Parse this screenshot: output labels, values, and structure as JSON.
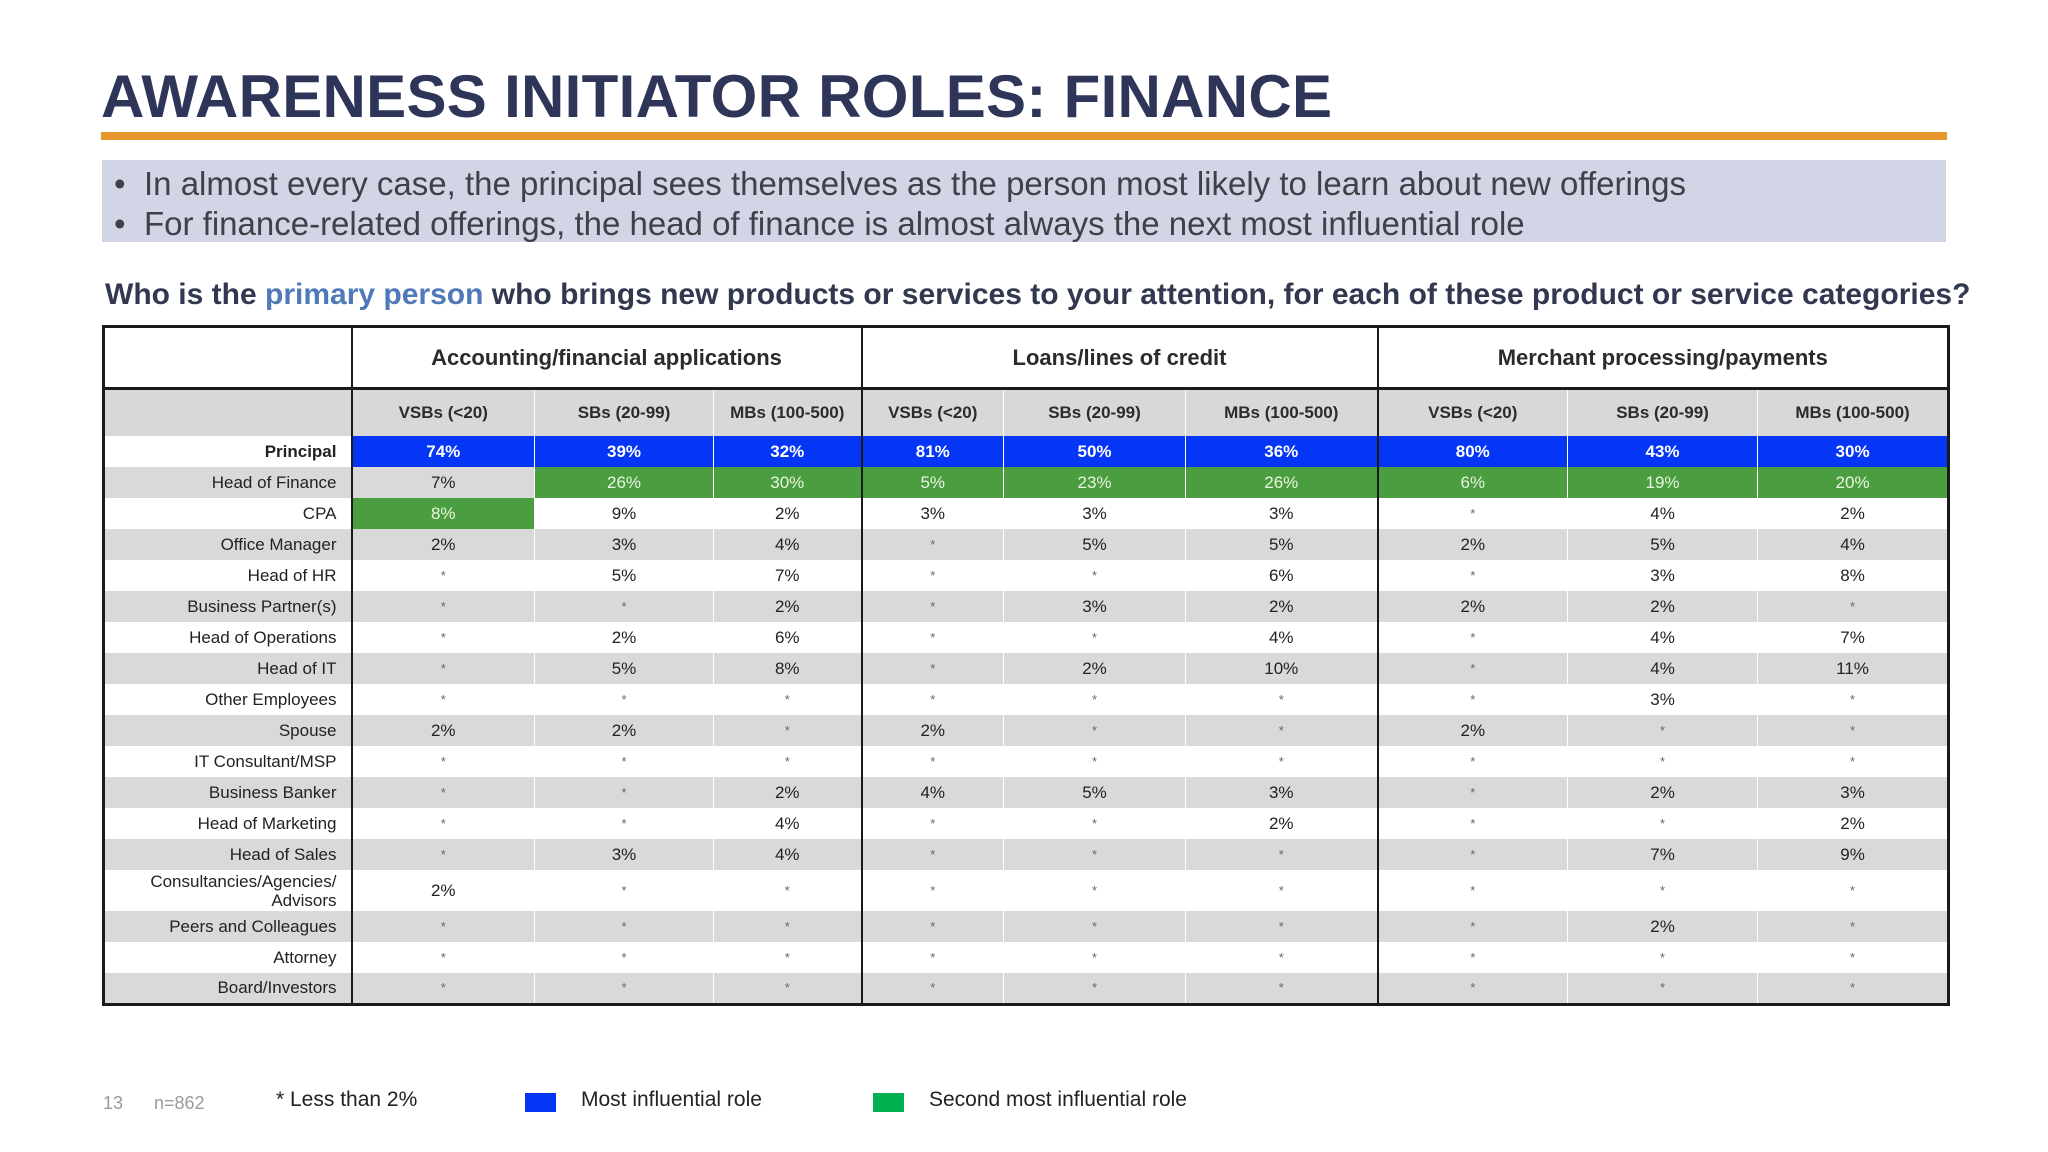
{
  "slide": {
    "title": "AWARENESS INITIATOR ROLES: FINANCE",
    "bullets": [
      "In almost every case, the principal sees themselves as the person most likely to learn about new offerings",
      "For finance-related offerings, the head of finance is almost always the next most influential role"
    ],
    "question_before": "Who is the ",
    "question_highlight": "primary person",
    "question_after": " who brings new products or services to your attention, for each of these product or service categories?"
  },
  "table": {
    "categories": [
      "Accounting/financial applications",
      "Loans/lines of credit",
      "Merchant processing/payments"
    ],
    "segments": [
      "VSBs (<20)",
      "SBs (20-99)",
      "MBs (100-500)",
      "VSBs (<20)",
      "SBs (20-99)",
      "MBs (100-500)",
      "VSBs (<20)",
      "SBs (20-99)",
      "MBs (100-500)"
    ],
    "rows": [
      {
        "label": "Principal",
        "values": [
          "74%",
          "39%",
          "32%",
          "81%",
          "50%",
          "36%",
          "80%",
          "43%",
          "30%"
        ],
        "highlight": [
          "blue",
          "blue",
          "blue",
          "blue",
          "blue",
          "blue",
          "blue",
          "blue",
          "blue"
        ]
      },
      {
        "label": "Head of Finance",
        "values": [
          "7%",
          "26%",
          "30%",
          "5%",
          "23%",
          "26%",
          "6%",
          "19%",
          "20%"
        ],
        "highlight": [
          "",
          "green",
          "green",
          "green",
          "green",
          "green",
          "green",
          "green",
          "green"
        ]
      },
      {
        "label": "CPA",
        "values": [
          "8%",
          "9%",
          "2%",
          "3%",
          "3%",
          "3%",
          "*",
          "4%",
          "2%"
        ],
        "highlight": [
          "green",
          "",
          "",
          "",
          "",
          "",
          "",
          "",
          ""
        ]
      },
      {
        "label": "Office Manager",
        "values": [
          "2%",
          "3%",
          "4%",
          "*",
          "5%",
          "5%",
          "2%",
          "5%",
          "4%"
        ]
      },
      {
        "label": "Head of HR",
        "values": [
          "*",
          "5%",
          "7%",
          "*",
          "*",
          "6%",
          "*",
          "3%",
          "8%"
        ]
      },
      {
        "label": "Business Partner(s)",
        "values": [
          "*",
          "*",
          "2%",
          "*",
          "3%",
          "2%",
          "2%",
          "2%",
          "*"
        ]
      },
      {
        "label": "Head of Operations",
        "values": [
          "*",
          "2%",
          "6%",
          "*",
          "*",
          "4%",
          "*",
          "4%",
          "7%"
        ]
      },
      {
        "label": "Head of IT",
        "values": [
          "*",
          "5%",
          "8%",
          "*",
          "2%",
          "10%",
          "*",
          "4%",
          "11%"
        ]
      },
      {
        "label": "Other Employees",
        "values": [
          "*",
          "*",
          "*",
          "*",
          "*",
          "*",
          "*",
          "3%",
          "*"
        ]
      },
      {
        "label": "Spouse",
        "values": [
          "2%",
          "2%",
          "*",
          "2%",
          "*",
          "*",
          "2%",
          "*",
          "*"
        ]
      },
      {
        "label": "IT Consultant/MSP",
        "values": [
          "*",
          "*",
          "*",
          "*",
          "*",
          "*",
          "*",
          "*",
          "*"
        ]
      },
      {
        "label": "Business Banker",
        "values": [
          "*",
          "*",
          "2%",
          "4%",
          "5%",
          "3%",
          "*",
          "2%",
          "3%"
        ]
      },
      {
        "label": "Head of Marketing",
        "values": [
          "*",
          "*",
          "4%",
          "*",
          "*",
          "2%",
          "*",
          "*",
          "2%"
        ]
      },
      {
        "label": "Head of Sales",
        "values": [
          "*",
          "3%",
          "4%",
          "*",
          "*",
          "*",
          "*",
          "7%",
          "9%"
        ]
      },
      {
        "label": "Consultancies/Agencies/ Advisors",
        "values": [
          "2%",
          "*",
          "*",
          "*",
          "*",
          "*",
          "*",
          "*",
          "*"
        ]
      },
      {
        "label": "Peers and Colleagues",
        "values": [
          "*",
          "*",
          "*",
          "*",
          "*",
          "*",
          "*",
          "2%",
          "*"
        ]
      },
      {
        "label": "Attorney",
        "values": [
          "*",
          "*",
          "*",
          "*",
          "*",
          "*",
          "*",
          "*",
          "*"
        ]
      },
      {
        "label": "Board/Investors",
        "values": [
          "*",
          "*",
          "*",
          "*",
          "*",
          "*",
          "*",
          "*",
          "*"
        ]
      }
    ]
  },
  "footer": {
    "page_number": "13",
    "sample": "n=862",
    "note": "* Less than 2%",
    "legend_blue": "Most influential role",
    "legend_green": "Second most influential role"
  },
  "colors": {
    "title": "#2e3559",
    "accent_rule": "#e8962e",
    "most_influential": "#0535f5",
    "second_influential": "#4b9e3f",
    "legend_green": "#00b050"
  }
}
